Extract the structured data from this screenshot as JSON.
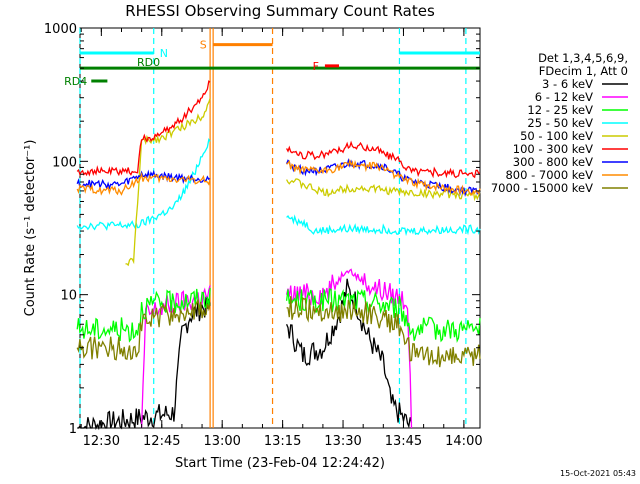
{
  "chart_data": {
    "type": "line",
    "title": "RHESSI Observing Summary Count Rates",
    "xlabel": "Start Time (23-Feb-04 12:24:42)",
    "ylabel": "Count Rate (s⁻¹ detector⁻¹)",
    "y_scale": "log",
    "ylim": [
      1,
      1000
    ],
    "y_ticks": [
      1,
      10,
      100,
      1000
    ],
    "y_tick_labels": [
      "1",
      "10",
      "100",
      "1000"
    ],
    "x_range": [
      "12:24:42",
      "14:04:00"
    ],
    "x_ticks": [
      "12:30",
      "12:45",
      "13:00",
      "13:15",
      "13:30",
      "13:45",
      "14:00"
    ],
    "legend_header": [
      "Det 1,3,4,5,6,9,",
      "FDecim 1, Att 0"
    ],
    "legend_position": "right",
    "series": [
      {
        "name": "3 - 6 keV",
        "color": "#000000",
        "points": [
          [
            "12:24",
            1
          ],
          [
            "12:48",
            1.3
          ],
          [
            "12:50",
            5
          ],
          [
            "12:52",
            7
          ],
          [
            "12:55",
            8
          ],
          [
            "12:57",
            8
          ],
          [
            "13:16",
            6
          ],
          [
            "13:20",
            3.5
          ],
          [
            "13:25",
            4
          ],
          [
            "13:29",
            7
          ],
          [
            "13:31",
            11
          ],
          [
            "13:33",
            9
          ],
          [
            "13:36",
            5
          ],
          [
            "13:40",
            3
          ],
          [
            "13:42",
            1.5
          ],
          [
            "13:47",
            1
          ]
        ]
      },
      {
        "name": "6 - 12 keV",
        "color": "#ff00ff",
        "points": [
          [
            "12:40",
            1
          ],
          [
            "12:41",
            7
          ],
          [
            "12:45",
            8
          ],
          [
            "12:52",
            9
          ],
          [
            "12:57",
            10
          ],
          [
            "13:16",
            10
          ],
          [
            "13:22",
            10
          ],
          [
            "13:26",
            10.5
          ],
          [
            "13:29",
            13
          ],
          [
            "13:31",
            16
          ],
          [
            "13:33",
            14
          ],
          [
            "13:36",
            12
          ],
          [
            "13:42",
            10
          ],
          [
            "13:46",
            9
          ],
          [
            "13:47",
            1
          ]
        ]
      },
      {
        "name": "12 - 25 keV",
        "color": "#00ff00",
        "points": [
          [
            "12:24",
            5.5
          ],
          [
            "12:39",
            5.5
          ],
          [
            "12:40",
            8
          ],
          [
            "12:44",
            8.5
          ],
          [
            "12:50",
            9
          ],
          [
            "12:57",
            9.5
          ],
          [
            "13:16",
            9
          ],
          [
            "13:25",
            9
          ],
          [
            "13:35",
            9
          ],
          [
            "13:44",
            8
          ],
          [
            "13:47",
            5.5
          ],
          [
            "14:04",
            5.5
          ]
        ]
      },
      {
        "name": "25 - 50 keV",
        "color": "#00ffff",
        "points": [
          [
            "12:24",
            33
          ],
          [
            "12:33",
            33
          ],
          [
            "12:39",
            33
          ],
          [
            "12:41",
            35
          ],
          [
            "12:48",
            45
          ],
          [
            "12:52",
            70
          ],
          [
            "12:57",
            150
          ],
          [
            "13:16",
            38
          ],
          [
            "13:20",
            35
          ],
          [
            "13:23",
            30
          ],
          [
            "13:30",
            31
          ],
          [
            "13:40",
            31
          ],
          [
            "13:46",
            30
          ],
          [
            "14:00",
            31
          ],
          [
            "14:04",
            31
          ]
        ]
      },
      {
        "name": "50 - 100 keV",
        "color": "#cccc00",
        "points": [
          [
            "12:36",
            17
          ],
          [
            "12:38",
            18
          ],
          [
            "12:40",
            140
          ],
          [
            "12:45",
            150
          ],
          [
            "12:50",
            180
          ],
          [
            "12:55",
            220
          ],
          [
            "12:57",
            290
          ],
          [
            "13:16",
            73
          ],
          [
            "13:20",
            67
          ],
          [
            "13:25",
            58
          ],
          [
            "13:32",
            63
          ],
          [
            "13:38",
            62
          ],
          [
            "13:46",
            58
          ],
          [
            "14:00",
            56
          ],
          [
            "14:04",
            56
          ]
        ]
      },
      {
        "name": "100 - 300 keV",
        "color": "#ff0000",
        "points": [
          [
            "12:24",
            84
          ],
          [
            "12:35",
            84
          ],
          [
            "12:39",
            85
          ],
          [
            "12:40",
            145
          ],
          [
            "12:45",
            160
          ],
          [
            "12:50",
            210
          ],
          [
            "12:55",
            300
          ],
          [
            "12:57",
            400
          ],
          [
            "13:16",
            125
          ],
          [
            "13:20",
            112
          ],
          [
            "13:24",
            110
          ],
          [
            "13:32",
            130
          ],
          [
            "13:38",
            125
          ],
          [
            "13:44",
            100
          ],
          [
            "13:47",
            85
          ],
          [
            "14:00",
            80
          ],
          [
            "14:04",
            80
          ]
        ]
      },
      {
        "name": "300 - 800 keV",
        "color": "#0000ff",
        "points": [
          [
            "12:24",
            68
          ],
          [
            "12:35",
            67
          ],
          [
            "12:40",
            80
          ],
          [
            "12:50",
            75
          ],
          [
            "12:57",
            74
          ],
          [
            "13:16",
            96
          ],
          [
            "13:20",
            86
          ],
          [
            "13:25",
            85
          ],
          [
            "13:32",
            97
          ],
          [
            "13:40",
            92
          ],
          [
            "13:46",
            72
          ],
          [
            "14:00",
            60
          ],
          [
            "14:04",
            60
          ]
        ]
      },
      {
        "name": "800 - 7000 keV",
        "color": "#ff8c00",
        "points": [
          [
            "12:24",
            62
          ],
          [
            "12:35",
            60
          ],
          [
            "12:40",
            75
          ],
          [
            "12:50",
            73
          ],
          [
            "12:57",
            72
          ],
          [
            "13:16",
            95
          ],
          [
            "13:20",
            85
          ],
          [
            "13:25",
            84
          ],
          [
            "13:32",
            95
          ],
          [
            "13:40",
            90
          ],
          [
            "13:46",
            70
          ],
          [
            "14:00",
            60
          ],
          [
            "14:04",
            60
          ]
        ]
      },
      {
        "name": "7000 - 15000 keV",
        "color": "#808000",
        "points": [
          [
            "12:24",
            4
          ],
          [
            "12:39",
            4
          ],
          [
            "12:40",
            6
          ],
          [
            "12:45",
            7
          ],
          [
            "12:57",
            7.5
          ],
          [
            "13:16",
            8
          ],
          [
            "13:25",
            7.5
          ],
          [
            "13:35",
            7.5
          ],
          [
            "13:44",
            6
          ],
          [
            "13:47",
            3.5
          ],
          [
            "14:04",
            3.5
          ]
        ]
      }
    ],
    "annotations": [
      {
        "label": "N",
        "color": "#00ffff",
        "type": "band",
        "y": 650,
        "x_start": "12:24:42",
        "x_end": "12:43:00"
      },
      {
        "label": "",
        "color": "#00ffff",
        "type": "band",
        "y": 650,
        "x_start": "13:44:00",
        "x_end": "14:04:00"
      },
      {
        "label": "RD0",
        "color": "#008000",
        "type": "band",
        "y": 500,
        "x_start": "12:24:42",
        "x_end": "14:04:00"
      },
      {
        "label": "RD4",
        "color": "#008000",
        "type": "band",
        "y": 400,
        "x_start": "12:27:30",
        "x_end": "12:31:30"
      },
      {
        "label": "S",
        "color": "#ff8000",
        "type": "band",
        "y": 750,
        "x_start": "12:57:40",
        "x_end": "13:12:30"
      },
      {
        "label": "F",
        "color": "#ff0000",
        "type": "band",
        "y": 520,
        "x_start": "13:25:30",
        "x_end": "13:29:00"
      }
    ],
    "vertical_markers": [
      {
        "time": "12:24:42",
        "color": "#00ffff",
        "style": "dashed"
      },
      {
        "time": "12:43:00",
        "color": "#00ffff",
        "style": "dashed"
      },
      {
        "time": "12:57:00",
        "color": "#ff8000",
        "style": "solid"
      },
      {
        "time": "12:57:45",
        "color": "#ff8000",
        "style": "solid"
      },
      {
        "time": "13:12:30",
        "color": "#ff8000",
        "style": "dashed"
      },
      {
        "time": "13:44:00",
        "color": "#00ffff",
        "style": "dashed"
      },
      {
        "time": "14:00:30",
        "color": "#00ffff",
        "style": "dashed"
      }
    ],
    "grid": false
  },
  "timestamp": "15-Oct-2021 05:43"
}
